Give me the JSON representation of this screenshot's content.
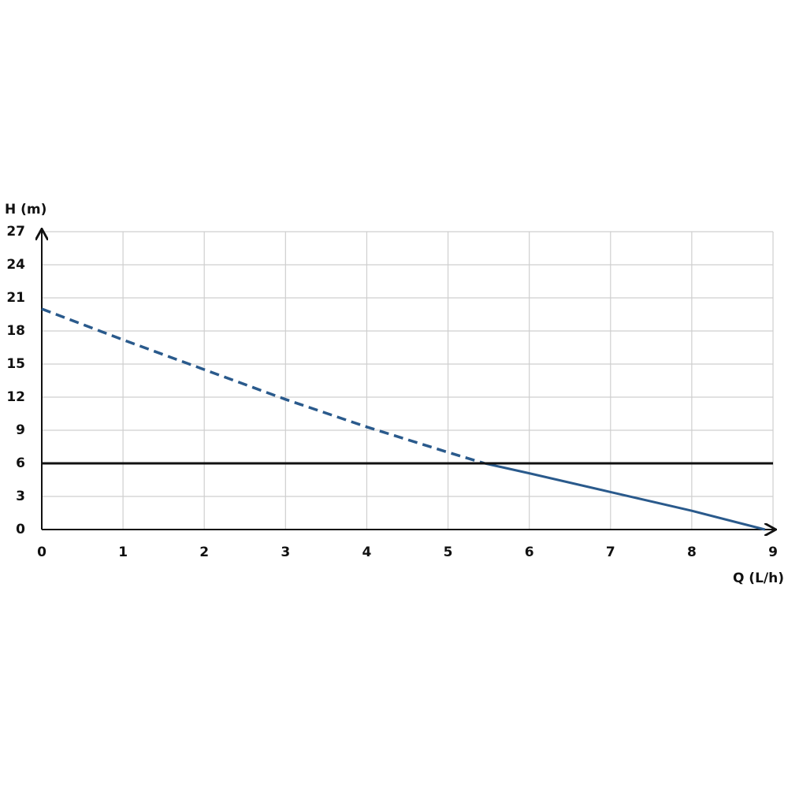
{
  "chart_data": {
    "type": "line",
    "y_label": "H (m)",
    "x_label": "Q (L/h)",
    "xlim": [
      0,
      9
    ],
    "xticks": [
      0,
      1,
      2,
      3,
      4,
      5,
      6,
      7,
      8,
      9
    ],
    "ylim": [
      0,
      27
    ],
    "yticks": [
      0,
      3,
      6,
      9,
      12,
      15,
      18,
      21,
      24,
      27
    ],
    "grid": true,
    "series": [
      {
        "color": "#2a5a8c",
        "style": "dashed",
        "x": [
          0,
          1,
          2,
          3,
          4,
          5,
          5.45
        ],
        "values": [
          20,
          17.2,
          14.5,
          11.8,
          9.3,
          7,
          6
        ]
      },
      {
        "color": "#2a5a8c",
        "style": "solid",
        "x": [
          5.45,
          6,
          7,
          8,
          8.9
        ],
        "values": [
          6,
          5.1,
          3.4,
          1.7,
          0
        ]
      },
      {
        "color": "#111111",
        "style": "solid",
        "x": [
          0,
          9
        ],
        "values": [
          6,
          6
        ]
      }
    ]
  }
}
